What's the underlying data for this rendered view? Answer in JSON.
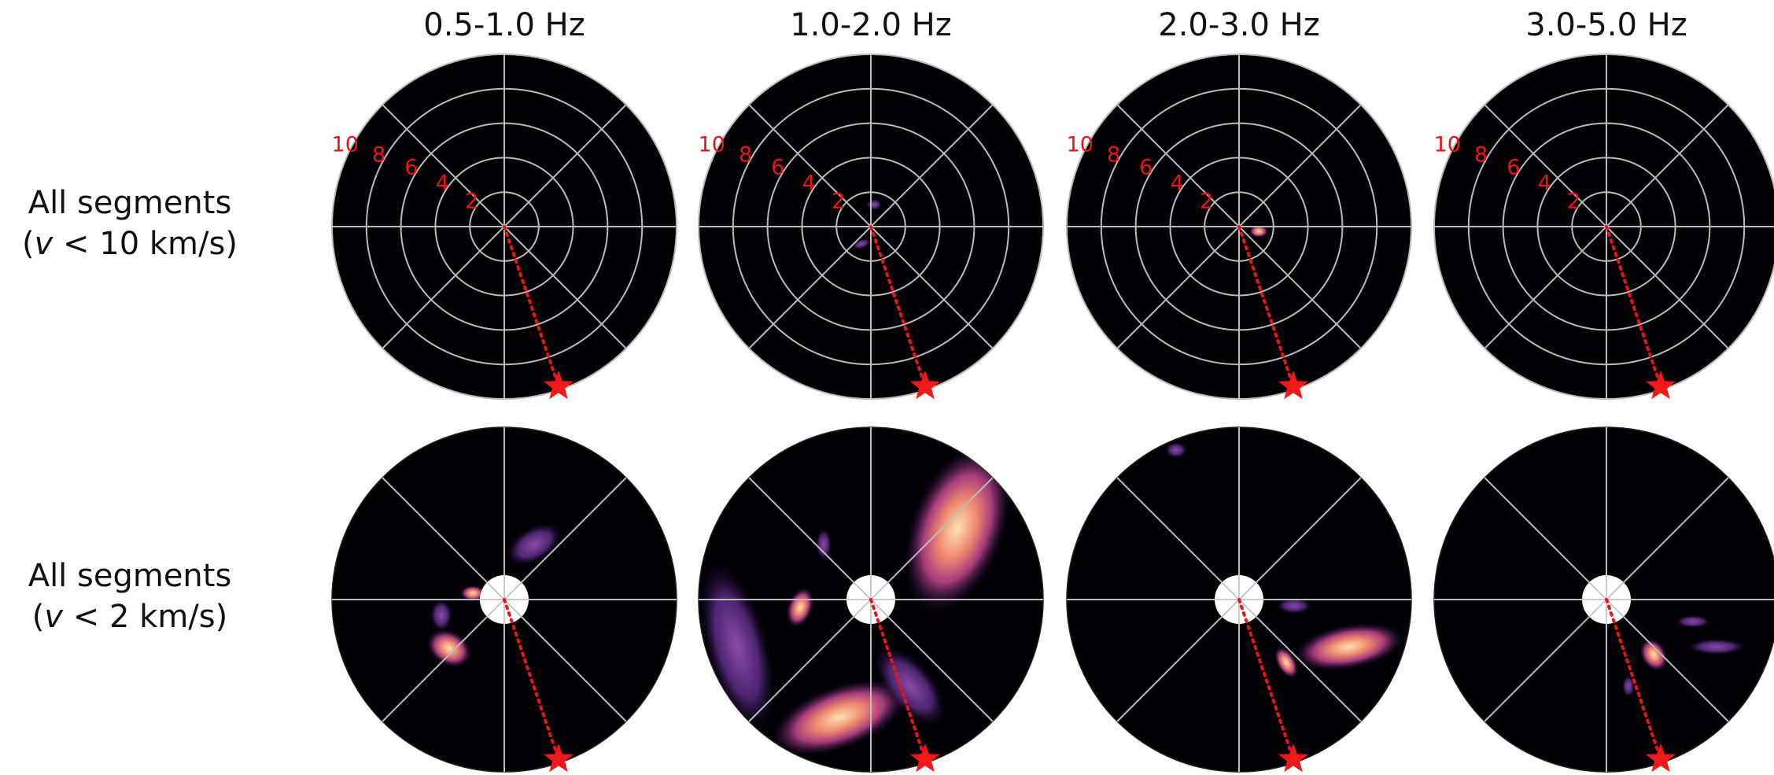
{
  "column_titles": [
    "0.5-1.0 Hz",
    "1.0-2.0 Hz",
    "2.0-3.0 Hz",
    "3.0-5.0 Hz"
  ],
  "row_labels": [
    {
      "line1": "All segments",
      "open": "(",
      "variable": "v",
      "rest": " < 10 km/s)"
    },
    {
      "line1": "All segments",
      "open": "(",
      "variable": "v",
      "rest": " < 2 km/s)"
    }
  ],
  "rlim": [
    0,
    10
  ],
  "radial_ticks": [
    2,
    4,
    6,
    8,
    10
  ]
}
